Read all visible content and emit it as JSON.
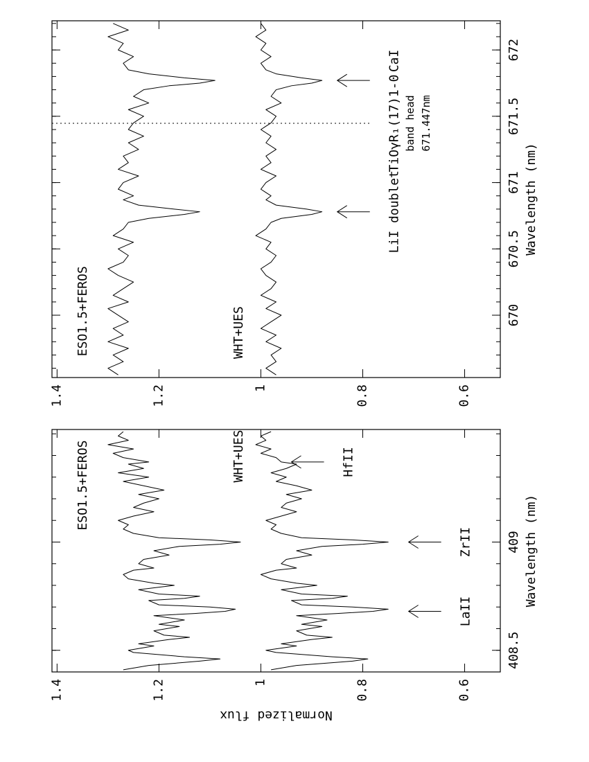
{
  "chart_data": [
    {
      "type": "line",
      "xlabel": "Wavelength (nm)",
      "ylabel": "Normalized flux",
      "xlim": [
        408.4,
        409.52
      ],
      "ylim": [
        0.53,
        1.41
      ],
      "xticks": [
        408.5,
        409
      ],
      "xminorticks": [
        408.4,
        408.5,
        408.6,
        408.7,
        408.8,
        408.9,
        409,
        409.1,
        409.2,
        409.3,
        409.4,
        409.5
      ],
      "yticks": [
        1.4,
        1.2,
        1,
        0.8,
        0.6
      ],
      "x": [
        408.41,
        408.43,
        408.45,
        408.46,
        408.47,
        408.49,
        408.5,
        408.52,
        408.53,
        408.55,
        408.56,
        408.57,
        408.59,
        408.61,
        408.62,
        408.64,
        408.66,
        408.67,
        408.68,
        408.69,
        408.7,
        408.71,
        408.73,
        408.74,
        408.75,
        408.76,
        408.78,
        408.8,
        408.81,
        408.83,
        408.85,
        408.87,
        408.88,
        408.9,
        408.92,
        408.94,
        408.96,
        408.98,
        408.99,
        409,
        409.01,
        409.02,
        409.04,
        409.06,
        409.08,
        409.1,
        409.12,
        409.14,
        409.16,
        409.18,
        409.2,
        409.22,
        409.24,
        409.26,
        409.28,
        409.3,
        409.32,
        409.34,
        409.36,
        409.37,
        409.39,
        409.41,
        409.43,
        409.45,
        409.47,
        409.49,
        409.51
      ],
      "series": [
        {
          "name": "ESO1.5+FEROS",
          "color": "#000000",
          "values": [
            1.27,
            1.22,
            1.12,
            1.08,
            1.15,
            1.25,
            1.26,
            1.21,
            1.24,
            1.18,
            1.14,
            1.19,
            1.21,
            1.16,
            1.2,
            1.15,
            1.21,
            1.13,
            1.07,
            1.05,
            1.1,
            1.2,
            1.22,
            1.15,
            1.12,
            1.2,
            1.24,
            1.17,
            1.21,
            1.26,
            1.27,
            1.25,
            1.21,
            1.24,
            1.23,
            1.18,
            1.21,
            1.16,
            1.08,
            1.04,
            1.1,
            1.2,
            1.25,
            1.27,
            1.26,
            1.28,
            1.25,
            1.21,
            1.25,
            1.23,
            1.2,
            1.24,
            1.19,
            1.23,
            1.27,
            1.22,
            1.28,
            1.23,
            1.26,
            1.22,
            1.27,
            1.29,
            1.25,
            1.3,
            1.26,
            1.28,
            1.27
          ]
        },
        {
          "name": "WHT+UES",
          "color": "#000000",
          "values": [
            0.98,
            0.93,
            0.82,
            0.79,
            0.86,
            0.97,
            0.99,
            0.93,
            0.96,
            0.9,
            0.86,
            0.91,
            0.93,
            0.88,
            0.92,
            0.87,
            0.93,
            0.85,
            0.78,
            0.75,
            0.82,
            0.92,
            0.94,
            0.86,
            0.83,
            0.92,
            0.96,
            0.89,
            0.93,
            0.98,
            1,
            0.97,
            0.93,
            0.96,
            0.95,
            0.9,
            0.93,
            0.88,
            0.8,
            0.75,
            0.82,
            0.92,
            0.96,
            0.98,
            0.97,
            0.99,
            0.96,
            0.93,
            0.96,
            0.95,
            0.92,
            0.95,
            0.9,
            0.93,
            0.97,
            0.95,
            0.98,
            0.95,
            0.93,
            0.96,
            0.97,
            1,
            0.98,
            1.01,
            0.99,
            1,
            0.98
          ]
        }
      ],
      "annotations": [
        {
          "text": "LaII",
          "x": 408.68,
          "y": 0.71
        },
        {
          "text": "ZrII",
          "x": 409,
          "y": 0.71
        },
        {
          "text": "HfII",
          "x": 409.37,
          "y": 0.94
        }
      ]
    },
    {
      "type": "line",
      "xlabel": "Wavelength (nm)",
      "xlim": [
        669.53,
        672.22
      ],
      "ylim": [
        0.53,
        1.41
      ],
      "xticks": [
        670,
        670.5,
        671,
        671.5,
        672
      ],
      "xminorticks": [
        669.6,
        669.7,
        669.8,
        669.9,
        670,
        670.1,
        670.2,
        670.3,
        670.4,
        670.5,
        670.6,
        670.7,
        670.8,
        670.9,
        671,
        671.1,
        671.2,
        671.3,
        671.4,
        671.5,
        671.6,
        671.7,
        671.8,
        671.9,
        672,
        672.1,
        672.2
      ],
      "yticks": [
        1.4,
        1.2,
        1,
        0.8,
        0.6
      ],
      "x": [
        669.55,
        669.6,
        669.65,
        669.7,
        669.75,
        669.8,
        669.85,
        669.9,
        669.95,
        670,
        670.05,
        670.1,
        670.15,
        670.2,
        670.25,
        670.3,
        670.35,
        670.4,
        670.45,
        670.5,
        670.55,
        670.6,
        670.65,
        670.7,
        670.73,
        670.76,
        670.78,
        670.8,
        670.83,
        670.87,
        670.9,
        670.95,
        671,
        671.05,
        671.1,
        671.15,
        671.2,
        671.25,
        671.3,
        671.35,
        671.4,
        671.45,
        671.5,
        671.55,
        671.6,
        671.65,
        671.7,
        671.73,
        671.75,
        671.77,
        671.79,
        671.82,
        671.85,
        671.9,
        671.95,
        672,
        672.05,
        672.1,
        672.15,
        672.2
      ],
      "series": [
        {
          "name": "ESO1.5+FEROS",
          "color": "#000000",
          "values": [
            1.28,
            1.3,
            1.27,
            1.29,
            1.26,
            1.3,
            1.27,
            1.29,
            1.26,
            1.28,
            1.3,
            1.26,
            1.29,
            1.27,
            1.25,
            1.28,
            1.3,
            1.27,
            1.26,
            1.28,
            1.25,
            1.29,
            1.27,
            1.26,
            1.22,
            1.15,
            1.12,
            1.17,
            1.24,
            1.27,
            1.25,
            1.28,
            1.27,
            1.24,
            1.28,
            1.26,
            1.27,
            1.24,
            1.26,
            1.23,
            1.26,
            1.25,
            1.23,
            1.26,
            1.22,
            1.25,
            1.23,
            1.18,
            1.12,
            1.09,
            1.15,
            1.22,
            1.26,
            1.27,
            1.25,
            1.28,
            1.27,
            1.3,
            1.26,
            1.29
          ]
        },
        {
          "name": "WHT+UES",
          "color": "#000000",
          "values": [
            0.97,
            0.99,
            0.97,
            0.98,
            0.96,
            0.99,
            0.97,
            1,
            0.98,
            0.96,
            0.99,
            0.97,
            1,
            0.98,
            0.97,
            0.99,
            1,
            0.98,
            0.97,
            0.99,
            0.98,
            1.01,
            0.99,
            0.98,
            0.96,
            0.9,
            0.88,
            0.91,
            0.97,
            0.99,
            0.98,
            1,
            0.99,
            0.97,
            1,
            0.98,
            0.99,
            0.97,
            0.99,
            0.98,
            1,
            0.98,
            0.97,
            0.99,
            0.96,
            0.98,
            0.97,
            0.94,
            0.9,
            0.88,
            0.92,
            0.97,
            0.99,
            1,
            0.98,
            1,
            0.99,
            1.01,
            0.99,
            1
          ]
        }
      ],
      "annotations": [
        {
          "text": "LiI doublet",
          "x": 670.78,
          "y": 0.85
        },
        {
          "text": "CaI",
          "x": 671.77,
          "y": 0.85
        }
      ],
      "band_head": {
        "value": 671.447,
        "label": "671.447nm",
        "text": [
          "TiOγR₁(17)1-0",
          "band head"
        ]
      }
    }
  ]
}
